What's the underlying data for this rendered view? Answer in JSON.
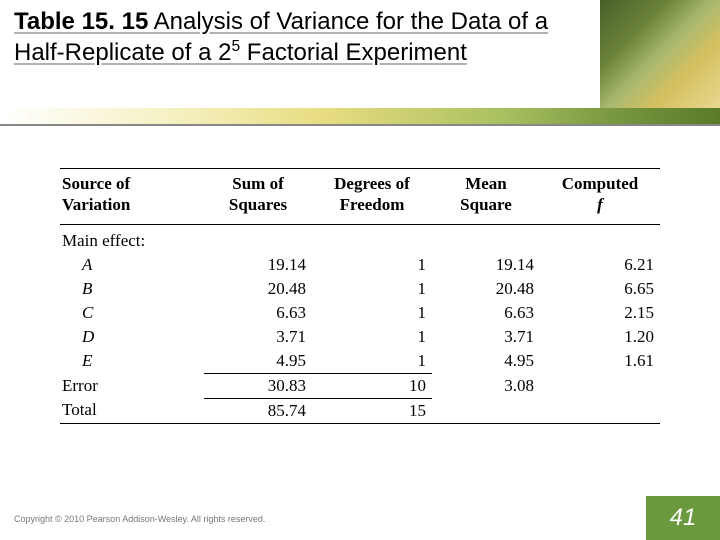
{
  "title": {
    "prefix_bold": "Table 15. 15",
    "rest_before_sup": "  Analysis of Variance for the Data of a Half-Replicate of a 2",
    "sup": "5",
    "rest_after_sup": " Factorial Experiment"
  },
  "table": {
    "headers": {
      "source_l1": "Source of",
      "source_l2": "Variation",
      "ss_l1": "Sum of",
      "ss_l2": "Squares",
      "df_l1": "Degrees of",
      "df_l2": "Freedom",
      "ms_l1": "Mean",
      "ms_l2": "Square",
      "f_l1": "Computed",
      "f_l2": "f"
    },
    "section_label": "Main effect:",
    "rows": [
      {
        "src": "A",
        "ss": "19.14",
        "df": "1",
        "ms": "19.14",
        "f": "6.21"
      },
      {
        "src": "B",
        "ss": "20.48",
        "df": "1",
        "ms": "20.48",
        "f": "6.65"
      },
      {
        "src": "C",
        "ss": "6.63",
        "df": "1",
        "ms": "6.63",
        "f": "2.15"
      },
      {
        "src": "D",
        "ss": "3.71",
        "df": "1",
        "ms": "3.71",
        "f": "1.20"
      },
      {
        "src": "E",
        "ss": "4.95",
        "df": "1",
        "ms": "4.95",
        "f": "1.61"
      }
    ],
    "error": {
      "src": "Error",
      "ss": "30.83",
      "df": "10",
      "ms": "3.08"
    },
    "total": {
      "src": "Total",
      "ss": "85.74",
      "df": "15"
    },
    "col_widths_pct": [
      24,
      18,
      20,
      18,
      20
    ],
    "rule_color": "#000000",
    "font_size_pt": 13
  },
  "copyright": "Copyright © 2010 Pearson Addison-Wesley. All rights reserved.",
  "page_number": "41",
  "colors": {
    "pagenum_bg": "#6b9a3e",
    "pagenum_fg": "#ffffff",
    "background": "#ffffff",
    "title_color": "#000000"
  }
}
